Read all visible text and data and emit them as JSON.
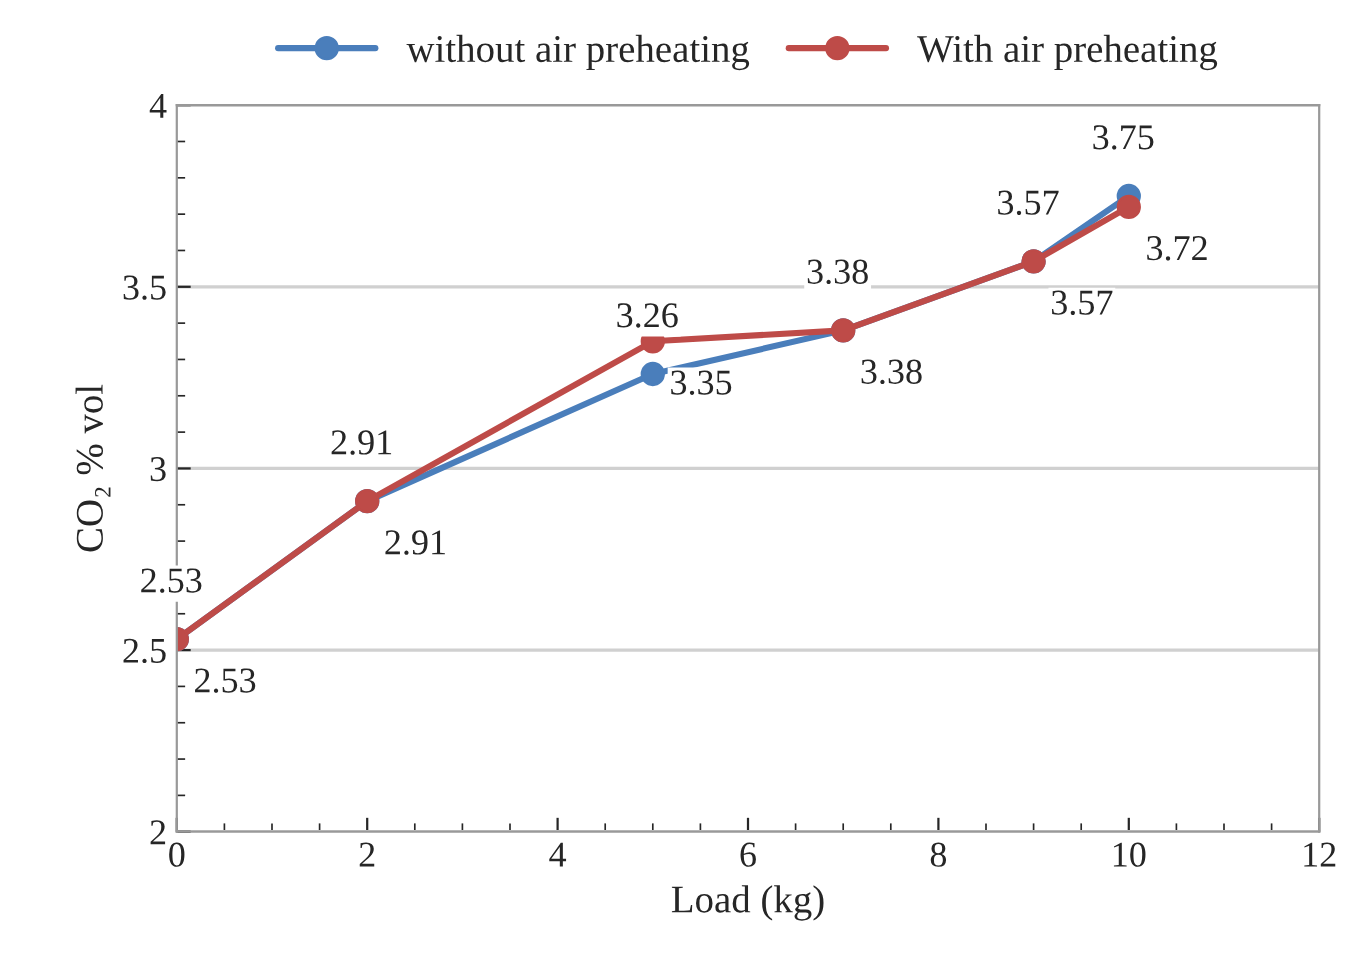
{
  "chart_data": {
    "type": "line",
    "xlabel": "Load (kg)",
    "ylabel": "CO₂ % vol",
    "x": [
      0,
      2,
      5,
      7,
      9,
      10
    ],
    "series": [
      {
        "name": "without air preheating",
        "color": "#4a7ebb",
        "values": [
          2.53,
          2.91,
          3.26,
          3.38,
          3.57,
          3.75
        ]
      },
      {
        "name": "With air preheating",
        "color": "#be4b48",
        "values": [
          2.53,
          2.91,
          3.35,
          3.38,
          3.57,
          3.72
        ]
      }
    ],
    "xlim": [
      0,
      12
    ],
    "xticks": [
      0,
      2,
      4,
      6,
      8,
      10,
      12
    ],
    "ylim": [
      2,
      4
    ],
    "yticks": [
      2,
      2.5,
      3,
      3.5,
      4
    ],
    "grid": "y",
    "legend": "top",
    "marker": "circle",
    "line_style": "solid",
    "data_labels": true
  }
}
